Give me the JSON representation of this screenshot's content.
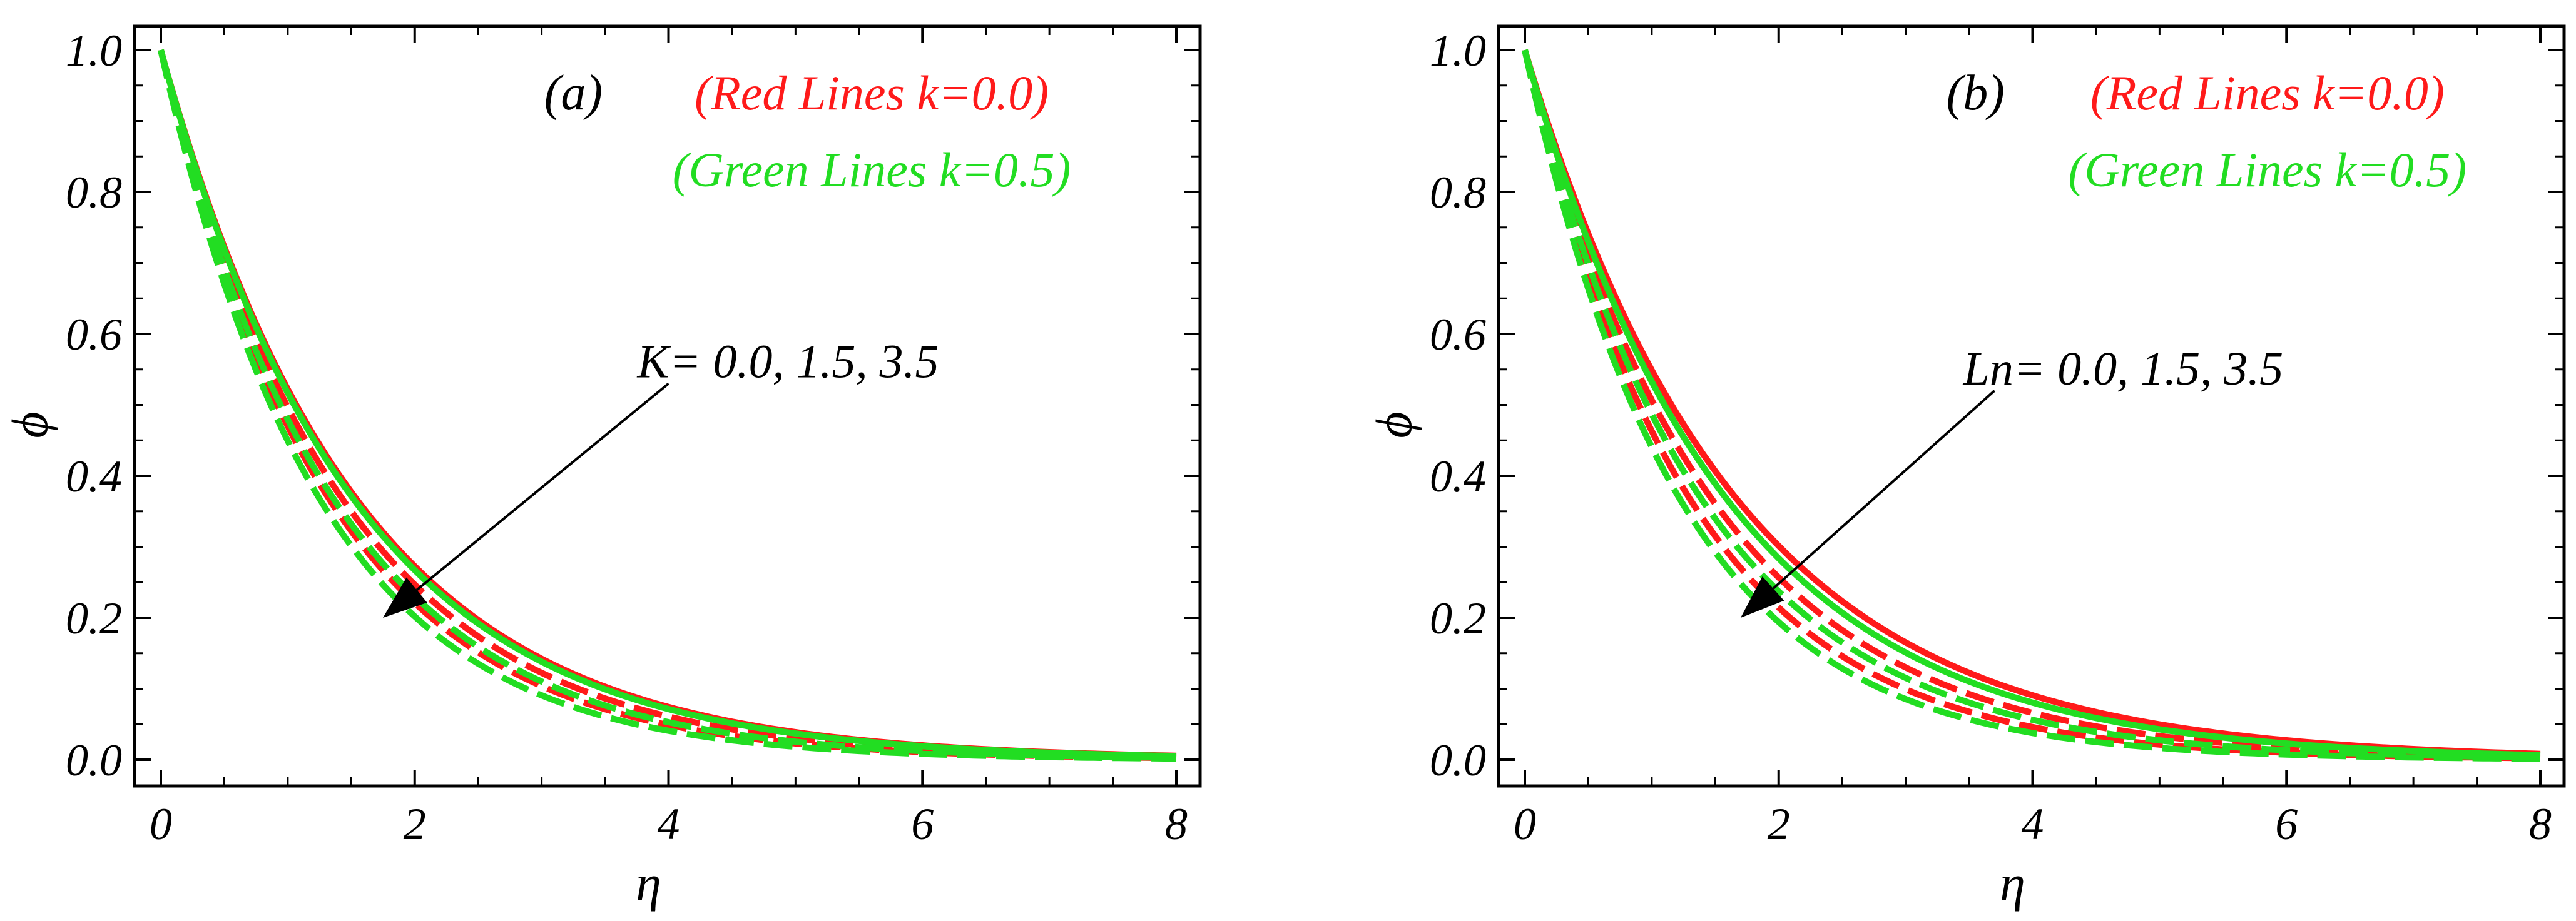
{
  "chart_data": [
    {
      "type": "line",
      "panel_label": "(a)",
      "xlabel": "η",
      "ylabel": "ϕ",
      "xlim": [
        0,
        8
      ],
      "ylim": [
        0,
        1
      ],
      "xticks": [
        "0",
        "2",
        "4",
        "6",
        "8"
      ],
      "yticks": [
        "0.0",
        "0.2",
        "0.4",
        "0.6",
        "0.8",
        "1.0"
      ],
      "legend": {
        "placement": "top-right",
        "red_text": "(Red Lines k=0.0)",
        "green_text": "(Green Lines k=0.5)",
        "red_color": "#ff1a1a",
        "green_color": "#22dd22"
      },
      "annotation": {
        "text": "K= 0.0, 1.5, 3.5",
        "arrow_from": [
          4.0,
          0.53
        ],
        "arrow_to": [
          1.75,
          0.2
        ]
      },
      "series": [
        {
          "color": "red",
          "style": "solid",
          "decay": 0.65
        },
        {
          "color": "red",
          "style": "dashed",
          "decay": 0.7
        },
        {
          "color": "red",
          "style": "dashed",
          "decay": 0.755
        },
        {
          "color": "green",
          "style": "solid",
          "decay": 0.66
        },
        {
          "color": "green",
          "style": "dashed",
          "decay": 0.735
        },
        {
          "color": "green",
          "style": "dashed",
          "decay": 0.8
        }
      ]
    },
    {
      "type": "line",
      "panel_label": "(b)",
      "xlabel": "η",
      "ylabel": "ϕ",
      "xlim": [
        0,
        8
      ],
      "ylim": [
        0,
        1
      ],
      "xticks": [
        "0",
        "2",
        "4",
        "6",
        "8"
      ],
      "yticks": [
        "0.0",
        "0.2",
        "0.4",
        "0.6",
        "0.8",
        "1.0"
      ],
      "legend": {
        "placement": "top-right",
        "red_text": "(Red Lines k=0.0)",
        "green_text": "(Green Lines k=0.5)",
        "red_color": "#ff1a1a",
        "green_color": "#22dd22"
      },
      "annotation": {
        "text": "Ln= 0.0, 1.5, 3.5",
        "arrow_from": [
          3.7,
          0.52
        ],
        "arrow_to": [
          1.7,
          0.2
        ]
      },
      "series": [
        {
          "color": "red",
          "style": "solid",
          "decay": 0.6
        },
        {
          "color": "red",
          "style": "dashed",
          "decay": 0.68
        },
        {
          "color": "red",
          "style": "dashed",
          "decay": 0.77
        },
        {
          "color": "green",
          "style": "solid",
          "decay": 0.63
        },
        {
          "color": "green",
          "style": "dashed",
          "decay": 0.72
        },
        {
          "color": "green",
          "style": "dashed",
          "decay": 0.82
        }
      ]
    }
  ]
}
